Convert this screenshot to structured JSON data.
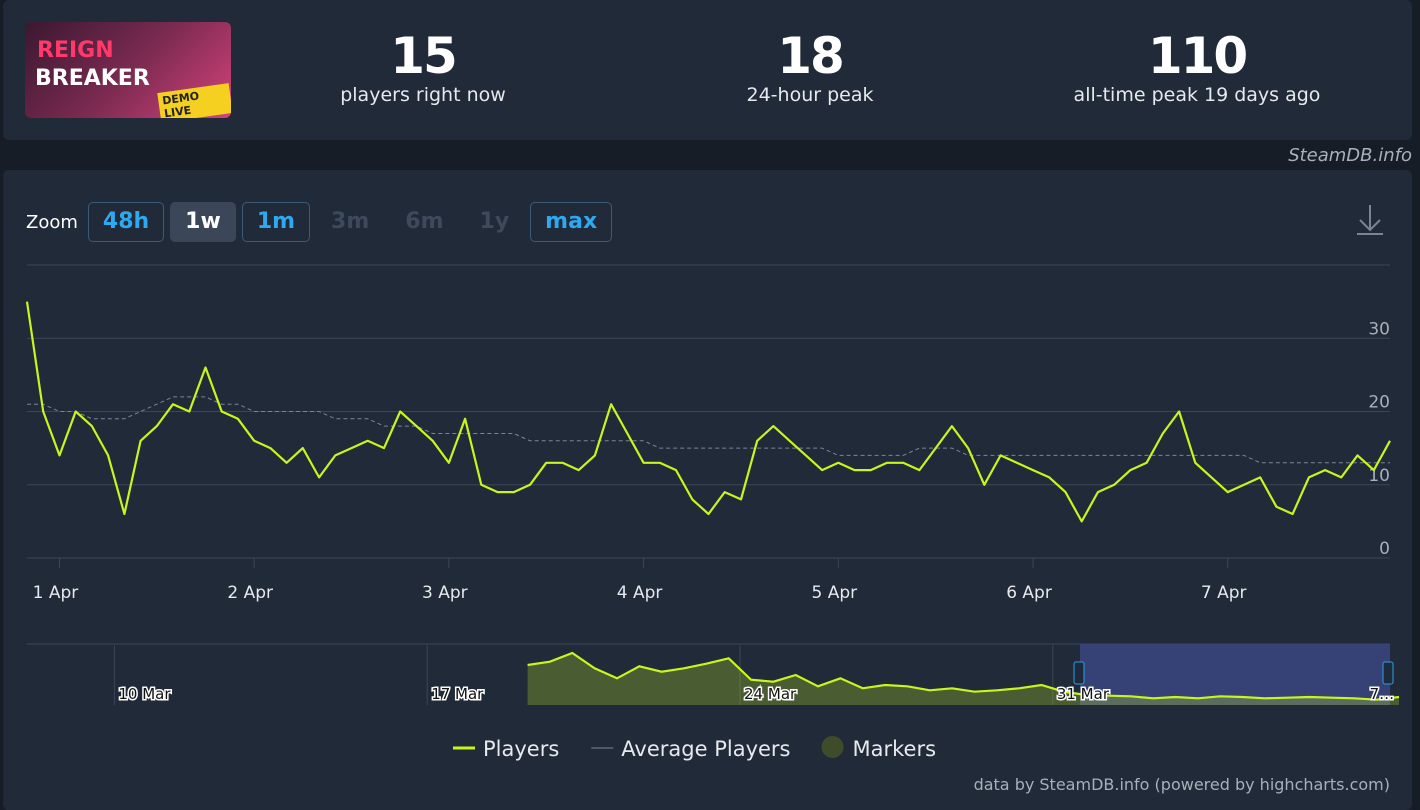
{
  "header": {
    "logo": {
      "line1": "REIGN",
      "line2": "BREAKER",
      "badge": "DEMO LIVE"
    },
    "stats": [
      {
        "value": 15,
        "label": "players right now"
      },
      {
        "value": 18,
        "label": "24-hour peak"
      },
      {
        "value": 110,
        "label": "all-time peak 19 days ago"
      }
    ]
  },
  "watermark": "SteamDB.info",
  "zoom": {
    "label": "Zoom",
    "buttons": [
      "48h",
      "1w",
      "1m",
      "3m",
      "6m",
      "1y",
      "max"
    ],
    "selected_index": 1,
    "disabled_indices": [
      3,
      4,
      5
    ]
  },
  "chart_data": {
    "type": "line",
    "categories": [
      null,
      null,
      "1 Apr",
      null,
      null,
      null,
      null,
      null,
      null,
      null,
      null,
      null,
      null,
      null,
      "2 Apr",
      null,
      null,
      null,
      null,
      null,
      null,
      null,
      null,
      null,
      null,
      null,
      "3 Apr",
      null,
      null,
      null,
      null,
      null,
      null,
      null,
      null,
      null,
      null,
      null,
      "4 Apr",
      null,
      null,
      null,
      null,
      null,
      null,
      null,
      null,
      null,
      null,
      null,
      "5 Apr",
      null,
      null,
      null,
      null,
      null,
      null,
      null,
      null,
      null,
      null,
      null,
      "6 Apr",
      null,
      null,
      null,
      null,
      null,
      null,
      null,
      null,
      null,
      null,
      null,
      "7 Apr",
      null,
      null,
      null,
      null,
      null,
      null,
      null,
      null,
      null,
      null
    ],
    "series": [
      {
        "name": "Players",
        "color": "#c8f51d",
        "values": [
          35,
          20,
          14,
          20,
          18,
          14,
          6,
          16,
          18,
          21,
          20,
          26,
          20,
          19,
          16,
          15,
          13,
          15,
          11,
          14,
          15,
          16,
          15,
          20,
          18,
          16,
          13,
          19,
          10,
          9,
          9,
          10,
          13,
          13,
          12,
          14,
          21,
          17,
          13,
          13,
          12,
          8,
          6,
          9,
          8,
          16,
          18,
          16,
          14,
          12,
          13,
          12,
          12,
          13,
          13,
          12,
          15,
          18,
          15,
          10,
          14,
          13,
          12,
          11,
          9,
          5,
          9,
          10,
          12,
          13,
          17,
          20,
          13,
          11,
          9,
          10,
          11,
          7,
          6,
          11,
          12,
          11,
          14,
          12,
          16
        ]
      },
      {
        "name": "Average Players",
        "color": "#7c8594",
        "dashed": true,
        "values": [
          21,
          21,
          20,
          20,
          19,
          19,
          19,
          20,
          21,
          22,
          22,
          22,
          21,
          21,
          20,
          20,
          20,
          20,
          20,
          19,
          19,
          19,
          18,
          18,
          18,
          17,
          17,
          17,
          17,
          17,
          17,
          16,
          16,
          16,
          16,
          16,
          16,
          16,
          16,
          15,
          15,
          15,
          15,
          15,
          15,
          15,
          15,
          15,
          15,
          15,
          14,
          14,
          14,
          14,
          14,
          15,
          15,
          15,
          14,
          14,
          14,
          14,
          14,
          14,
          14,
          14,
          14,
          14,
          14,
          14,
          14,
          14,
          14,
          14,
          14,
          14,
          13,
          13,
          13,
          13,
          13,
          13,
          13,
          13,
          13
        ]
      }
    ],
    "ylim": [
      0,
      40
    ],
    "yticks": [
      0,
      10,
      20,
      30
    ],
    "grid": true,
    "marker_legend": {
      "name": "Markers",
      "color": "#3f4c2a"
    },
    "navigator": {
      "categories": [
        null,
        null,
        null,
        null,
        "10 Mar",
        null,
        null,
        null,
        null,
        null,
        null,
        null,
        null,
        null,
        null,
        null,
        null,
        null,
        "17 Mar",
        null,
        null,
        null,
        null,
        null,
        null,
        null,
        null,
        null,
        null,
        null,
        null,
        null,
        "24 Mar",
        null,
        null,
        null,
        null,
        null,
        null,
        null,
        null,
        null,
        null,
        null,
        null,
        null,
        "31 Mar",
        null,
        null,
        null,
        null,
        null,
        null,
        null,
        null,
        null,
        null,
        null,
        null,
        null,
        "7…",
        null
      ],
      "values": [
        null,
        null,
        null,
        null,
        null,
        null,
        null,
        null,
        null,
        null,
        null,
        null,
        null,
        null,
        null,
        null,
        null,
        null,
        null,
        null,
        null,
        null,
        60,
        65,
        78,
        55,
        40,
        58,
        50,
        55,
        62,
        70,
        38,
        35,
        45,
        28,
        40,
        25,
        30,
        28,
        22,
        25,
        20,
        22,
        25,
        30,
        20,
        15,
        14,
        13,
        10,
        12,
        10,
        13,
        12,
        10,
        11,
        12,
        11,
        10,
        8,
        12
      ],
      "ylim": [
        0,
        90
      ],
      "color": "#c8f51d"
    }
  },
  "credits": "data by SteamDB.info (powered by highcharts.com)"
}
